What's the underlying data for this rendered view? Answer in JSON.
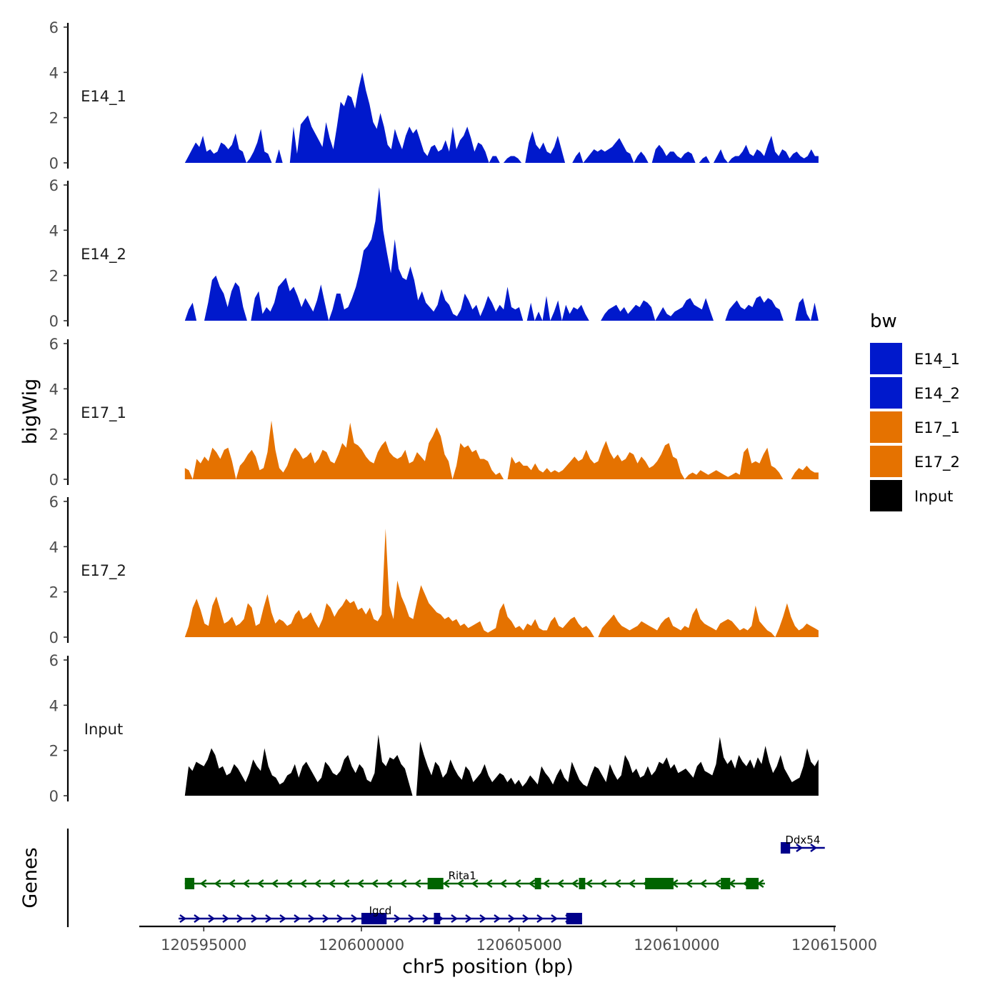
{
  "chart_data": {
    "type": "area",
    "xlabel": "chr5 position (bp)",
    "ylabel": "bigWig",
    "genes_label": "Genes",
    "xlim": [
      120593000,
      120615000
    ],
    "data_range": [
      120594400,
      120614500
    ],
    "x_ticks": [
      "120595000",
      "120600000",
      "120605000",
      "120610000",
      "120615000"
    ],
    "ylim": [
      0,
      6
    ],
    "y_ticks": [
      "0",
      "2",
      "4",
      "6"
    ],
    "legend": {
      "title": "bw",
      "position": "right",
      "entries": [
        {
          "label": "E14_1",
          "color": "#0019CC"
        },
        {
          "label": "E14_2",
          "color": "#0019CC"
        },
        {
          "label": "E17_1",
          "color": "#E57200"
        },
        {
          "label": "E17_2",
          "color": "#E57200"
        },
        {
          "label": "Input",
          "color": "#000000"
        }
      ]
    },
    "series": [
      {
        "name": "E14_1",
        "color": "#0019CC",
        "values": [
          0,
          0.3,
          0.6,
          0.9,
          0.7,
          1.2,
          0.5,
          0.6,
          0.4,
          0.5,
          0.9,
          0.8,
          0.6,
          0.8,
          1.3,
          0.6,
          0.5,
          0,
          0.2,
          0.5,
          0.9,
          1.5,
          0.5,
          0.4,
          0,
          0,
          0.6,
          0,
          0,
          0,
          1.6,
          0.4,
          1.7,
          1.9,
          2.1,
          1.6,
          1.3,
          1.0,
          0.7,
          1.8,
          1.1,
          0.6,
          1.6,
          2.7,
          2.5,
          3.0,
          2.9,
          2.4,
          3.3,
          4.0,
          3.2,
          2.6,
          1.8,
          1.5,
          2.2,
          1.6,
          0.8,
          0.6,
          1.5,
          1.0,
          0.6,
          1.2,
          1.6,
          1.3,
          1.5,
          1.0,
          0.5,
          0.3,
          0.7,
          0.8,
          0.5,
          0.6,
          1.0,
          0.5,
          1.6,
          0.6,
          1.0,
          1.2,
          1.6,
          1.1,
          0.5,
          0.9,
          0.8,
          0.5,
          0,
          0.3,
          0.3,
          0,
          0,
          0.2,
          0.3,
          0.3,
          0.2,
          0,
          0,
          0.9,
          1.4,
          0.8,
          0.6,
          0.9,
          0.5,
          0.4,
          0.7,
          1.2,
          0.6,
          0,
          0,
          0,
          0.3,
          0.5,
          0,
          0.2,
          0.4,
          0.6,
          0.5,
          0.6,
          0.5,
          0.6,
          0.7,
          0.9,
          1.1,
          0.8,
          0.5,
          0.4,
          0,
          0.3,
          0.5,
          0.3,
          0,
          0,
          0.6,
          0.8,
          0.6,
          0.3,
          0.5,
          0.5,
          0.3,
          0.2,
          0.4,
          0.5,
          0.4,
          0,
          0,
          0.2,
          0.3,
          0,
          0,
          0.3,
          0.6,
          0.2,
          0,
          0.2,
          0.3,
          0.3,
          0.5,
          0.8,
          0.4,
          0.3,
          0.6,
          0.5,
          0.3,
          0.8,
          1.2,
          0.5,
          0.3,
          0.6,
          0.5,
          0.2,
          0.4,
          0.5,
          0.3,
          0.2,
          0.3,
          0.6,
          0.3,
          0.3
        ]
      },
      {
        "name": "E14_2",
        "color": "#0019CC",
        "values": [
          0,
          0.5,
          0.8,
          0,
          0,
          0,
          0.8,
          1.8,
          2.0,
          1.5,
          1.2,
          0.6,
          1.3,
          1.7,
          1.5,
          0.6,
          0,
          0,
          1.0,
          1.3,
          0.3,
          0.6,
          0.4,
          0.8,
          1.5,
          1.7,
          1.9,
          1.3,
          1.5,
          1.1,
          0.6,
          1.0,
          0.7,
          0.4,
          0.9,
          1.6,
          0.8,
          0,
          0.5,
          1.2,
          1.2,
          0.5,
          0.6,
          1.0,
          1.5,
          2.2,
          3.1,
          3.3,
          3.6,
          4.4,
          5.9,
          4.0,
          3.0,
          2.1,
          3.6,
          2.3,
          1.9,
          1.8,
          2.4,
          1.8,
          0.9,
          1.3,
          0.8,
          0.6,
          0.4,
          0.7,
          1.4,
          0.9,
          0.7,
          0.3,
          0.2,
          0.5,
          1.2,
          0.9,
          0.5,
          0.7,
          0.2,
          0.6,
          1.1,
          0.8,
          0.4,
          0.7,
          0.5,
          1.5,
          0.6,
          0.5,
          0.6,
          0,
          0,
          0.8,
          0,
          0.4,
          0,
          1.1,
          0,
          0.4,
          0.9,
          0,
          0.7,
          0.3,
          0.6,
          0.5,
          0.7,
          0.3,
          0,
          0,
          0,
          0,
          0.3,
          0.5,
          0.6,
          0.7,
          0.4,
          0.6,
          0.3,
          0.5,
          0.7,
          0.6,
          0.9,
          0.8,
          0.6,
          0,
          0.3,
          0.6,
          0.3,
          0.2,
          0.4,
          0.5,
          0.6,
          0.9,
          1.0,
          0.7,
          0.6,
          0.5,
          1.0,
          0.5,
          0,
          0,
          0,
          0,
          0.5,
          0.7,
          0.9,
          0.6,
          0.5,
          0.7,
          0.6,
          1.0,
          1.1,
          0.8,
          1.0,
          0.9,
          0.6,
          0.5,
          0,
          0,
          0,
          0,
          0.8,
          1.0,
          0.3,
          0,
          0.8,
          0
        ]
      },
      {
        "name": "E17_1",
        "color": "#E57200",
        "values": [
          0.5,
          0.4,
          0,
          0.9,
          0.7,
          1.0,
          0.8,
          1.4,
          1.2,
          0.9,
          1.3,
          1.4,
          0.8,
          0,
          0.6,
          0.8,
          1.1,
          1.3,
          1.0,
          0.4,
          0.5,
          1.2,
          2.6,
          1.3,
          0.5,
          0.3,
          0.6,
          1.1,
          1.4,
          1.2,
          0.9,
          1.0,
          1.2,
          0.7,
          0.9,
          1.3,
          1.2,
          0.8,
          0.7,
          1.1,
          1.6,
          1.4,
          2.5,
          1.6,
          1.5,
          1.3,
          1.0,
          0.8,
          0.7,
          1.2,
          1.5,
          1.7,
          1.2,
          1.0,
          0.9,
          1.0,
          1.3,
          0.7,
          0.8,
          1.2,
          1.0,
          0.8,
          1.6,
          1.9,
          2.3,
          1.9,
          1.1,
          0.8,
          0,
          0.6,
          1.6,
          1.4,
          1.5,
          1.2,
          1.3,
          0.9,
          0.9,
          0.8,
          0.4,
          0.2,
          0.3,
          0,
          0,
          1.0,
          0.7,
          0.8,
          0.6,
          0.6,
          0.4,
          0.7,
          0.4,
          0.3,
          0.5,
          0.3,
          0.4,
          0.3,
          0.4,
          0.6,
          0.8,
          1.0,
          0.8,
          0.9,
          1.3,
          0.9,
          0.7,
          0.8,
          1.3,
          1.7,
          1.2,
          0.9,
          1.1,
          0.8,
          0.9,
          1.2,
          1.1,
          0.7,
          1.0,
          0.8,
          0.5,
          0.6,
          0.8,
          1.1,
          1.5,
          1.6,
          1.0,
          0.9,
          0.3,
          0,
          0.2,
          0.3,
          0.2,
          0.4,
          0.3,
          0.2,
          0.3,
          0.4,
          0.3,
          0.2,
          0.1,
          0.2,
          0.3,
          0.2,
          1.2,
          1.4,
          0.7,
          0.8,
          0.7,
          1.1,
          1.4,
          0.6,
          0.5,
          0.3,
          0,
          0,
          0,
          0.3,
          0.5,
          0.4,
          0.6,
          0.4,
          0.3,
          0.3
        ]
      },
      {
        "name": "E17_2",
        "color": "#E57200",
        "values": [
          0,
          0.5,
          1.3,
          1.7,
          1.2,
          0.6,
          0.5,
          1.4,
          1.8,
          1.2,
          0.6,
          0.7,
          0.9,
          0.5,
          0.6,
          0.8,
          1.5,
          1.3,
          0.5,
          0.6,
          1.3,
          1.9,
          1.1,
          0.6,
          0.8,
          0.7,
          0.5,
          0.6,
          1.0,
          1.2,
          0.8,
          0.9,
          1.1,
          0.7,
          0.4,
          0.8,
          1.5,
          1.3,
          0.9,
          1.2,
          1.4,
          1.7,
          1.5,
          1.6,
          1.2,
          1.3,
          1.0,
          1.3,
          0.8,
          0.7,
          1.0,
          4.8,
          1.4,
          0.8,
          2.5,
          1.8,
          1.4,
          0.9,
          0.8,
          1.6,
          2.3,
          1.9,
          1.5,
          1.3,
          1.1,
          1.0,
          0.8,
          0.9,
          0.7,
          0.8,
          0.5,
          0.6,
          0.4,
          0.5,
          0.6,
          0.7,
          0.3,
          0.2,
          0.3,
          0.4,
          1.2,
          1.5,
          0.9,
          0.7,
          0.4,
          0.5,
          0.3,
          0.6,
          0.5,
          0.8,
          0.4,
          0.3,
          0.3,
          0.7,
          0.9,
          0.5,
          0.4,
          0.6,
          0.8,
          0.9,
          0.6,
          0.4,
          0.5,
          0.3,
          0,
          0,
          0.4,
          0.6,
          0.8,
          1.0,
          0.7,
          0.5,
          0.4,
          0.3,
          0.4,
          0.5,
          0.7,
          0.6,
          0.5,
          0.4,
          0.3,
          0.6,
          0.8,
          0.9,
          0.5,
          0.4,
          0.3,
          0.5,
          0.4,
          1.0,
          1.3,
          0.8,
          0.6,
          0.5,
          0.4,
          0.3,
          0.6,
          0.7,
          0.8,
          0.7,
          0.5,
          0.3,
          0.4,
          0.3,
          0.5,
          1.4,
          0.7,
          0.5,
          0.3,
          0.2,
          0,
          0.4,
          0.9,
          1.5,
          0.9,
          0.5,
          0.3,
          0.4,
          0.6,
          0.5,
          0.4,
          0.3
        ]
      },
      {
        "name": "Input",
        "color": "#000000",
        "values": [
          0,
          1.3,
          1.1,
          1.5,
          1.4,
          1.3,
          1.6,
          2.1,
          1.8,
          1.2,
          1.3,
          0.9,
          1.0,
          1.4,
          1.2,
          0.9,
          0.6,
          1.0,
          1.6,
          1.3,
          1.1,
          2.1,
          1.3,
          0.9,
          0.8,
          0.5,
          0.6,
          0.9,
          1.0,
          1.4,
          0.8,
          1.3,
          1.5,
          1.2,
          0.9,
          0.6,
          0.8,
          1.5,
          1.3,
          1.0,
          0.9,
          1.1,
          1.6,
          1.8,
          1.3,
          1.0,
          1.4,
          1.2,
          0.7,
          0.6,
          1.0,
          2.7,
          1.5,
          1.3,
          1.7,
          1.6,
          1.8,
          1.4,
          1.2,
          0.6,
          0,
          0,
          2.4,
          1.8,
          1.3,
          0.9,
          1.5,
          1.3,
          0.8,
          1.0,
          1.6,
          1.2,
          0.9,
          0.7,
          1.3,
          1.1,
          0.6,
          0.8,
          1.0,
          1.4,
          0.9,
          0.6,
          0.8,
          1.0,
          0.9,
          0.6,
          0.8,
          0.5,
          0.7,
          0.4,
          0.6,
          0.9,
          0.7,
          0.5,
          1.3,
          1.0,
          0.8,
          0.5,
          0.9,
          1.2,
          0.8,
          0.6,
          1.5,
          1.1,
          0.7,
          0.5,
          0.4,
          0.9,
          1.3,
          1.2,
          0.9,
          0.6,
          1.4,
          1.0,
          0.7,
          0.9,
          1.8,
          1.5,
          1.0,
          1.2,
          0.8,
          0.9,
          1.3,
          0.9,
          1.1,
          1.5,
          1.4,
          1.7,
          1.2,
          1.4,
          1.0,
          1.1,
          1.2,
          1.0,
          0.8,
          1.3,
          1.5,
          1.1,
          1.0,
          0.9,
          1.4,
          2.6,
          1.7,
          1.4,
          1.6,
          1.2,
          1.8,
          1.5,
          1.3,
          1.6,
          1.2,
          1.7,
          1.4,
          2.2,
          1.5,
          1.0,
          1.3,
          1.8,
          1.2,
          0.9,
          0.6,
          0.7,
          0.8,
          1.3,
          2.1,
          1.5,
          1.3,
          1.6
        ]
      }
    ],
    "genes": [
      {
        "name": "Ddx54",
        "strand": "+",
        "color": "#00008B",
        "start": 120613300,
        "end": 120614700,
        "exons": [
          [
            120613300,
            120613600
          ]
        ],
        "row": 1
      },
      {
        "name": "Rita1",
        "strand": "-",
        "color": "#006400",
        "start": 120594400,
        "end": 120612800,
        "exons": [
          [
            120594400,
            120594700
          ],
          [
            120602100,
            120602600
          ],
          [
            120605500,
            120605700
          ],
          [
            120606900,
            120607100
          ],
          [
            120609000,
            120609900
          ],
          [
            120611400,
            120611700
          ],
          [
            120612200,
            120612600
          ]
        ],
        "row": 2
      },
      {
        "name": "Igcd",
        "strand": "+",
        "color": "#00008B",
        "start": 120594200,
        "end": 120607000,
        "exons": [
          [
            120600000,
            120600800
          ],
          [
            120602300,
            120602500
          ],
          [
            120606500,
            120607000
          ]
        ],
        "row": 3
      }
    ]
  }
}
